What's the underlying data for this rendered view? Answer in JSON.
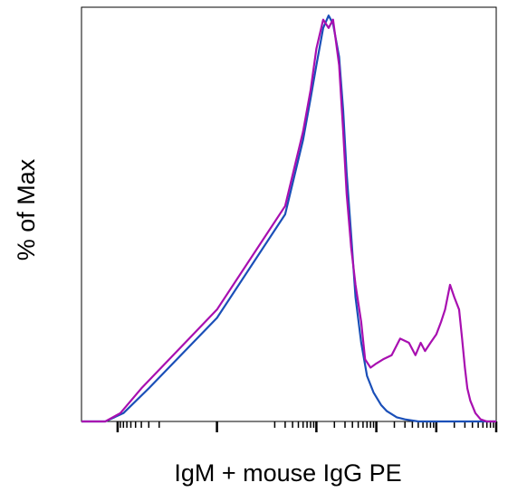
{
  "chart_data": {
    "type": "area",
    "title": "",
    "xlabel": "IgM + mouse IgG PE",
    "ylabel": "% of Max",
    "x_scale": "biexponential",
    "xlim": [
      -400,
      100000
    ],
    "ylim": [
      0,
      100
    ],
    "x_ticks_printed": false,
    "y_ticks_printed": false,
    "grid": false,
    "legend": "none",
    "series": [
      {
        "color": "#1a4fb8",
        "x": [
          -400,
          -160,
          -80,
          -30,
          0,
          30,
          60,
          80,
          100,
          130,
          160,
          190,
          240,
          280,
          320,
          380,
          450,
          560,
          700,
          900,
          1200,
          1500,
          2200,
          3000,
          5000,
          100000
        ],
        "y": [
          0,
          0,
          2,
          8,
          25,
          50,
          68,
          78,
          86,
          95,
          98,
          96,
          88,
          75,
          60,
          45,
          30,
          19,
          11,
          7,
          4,
          2.5,
          1,
          0.5,
          0,
          0
        ]
      },
      {
        "color": "#a80fb0",
        "x": [
          -400,
          -160,
          -90,
          -40,
          0,
          30,
          60,
          80,
          100,
          130,
          160,
          190,
          240,
          280,
          320,
          380,
          450,
          560,
          650,
          800,
          1000,
          1300,
          1800,
          2500,
          3500,
          4500,
          5500,
          6500,
          8000,
          10000,
          12000,
          14000,
          17000,
          20000,
          24000,
          27000,
          30000,
          33000,
          37000,
          45000,
          55000,
          70000,
          100000
        ],
        "y": [
          0,
          0,
          2,
          8,
          27,
          52,
          70,
          80,
          90,
          97,
          95,
          97,
          86,
          70,
          55,
          42,
          33,
          24,
          15,
          13,
          14,
          15,
          16,
          20,
          19,
          16,
          19,
          17,
          19,
          21,
          24,
          27,
          33,
          30,
          27,
          20,
          13,
          8,
          5,
          2,
          0.5,
          0,
          0
        ]
      }
    ]
  }
}
